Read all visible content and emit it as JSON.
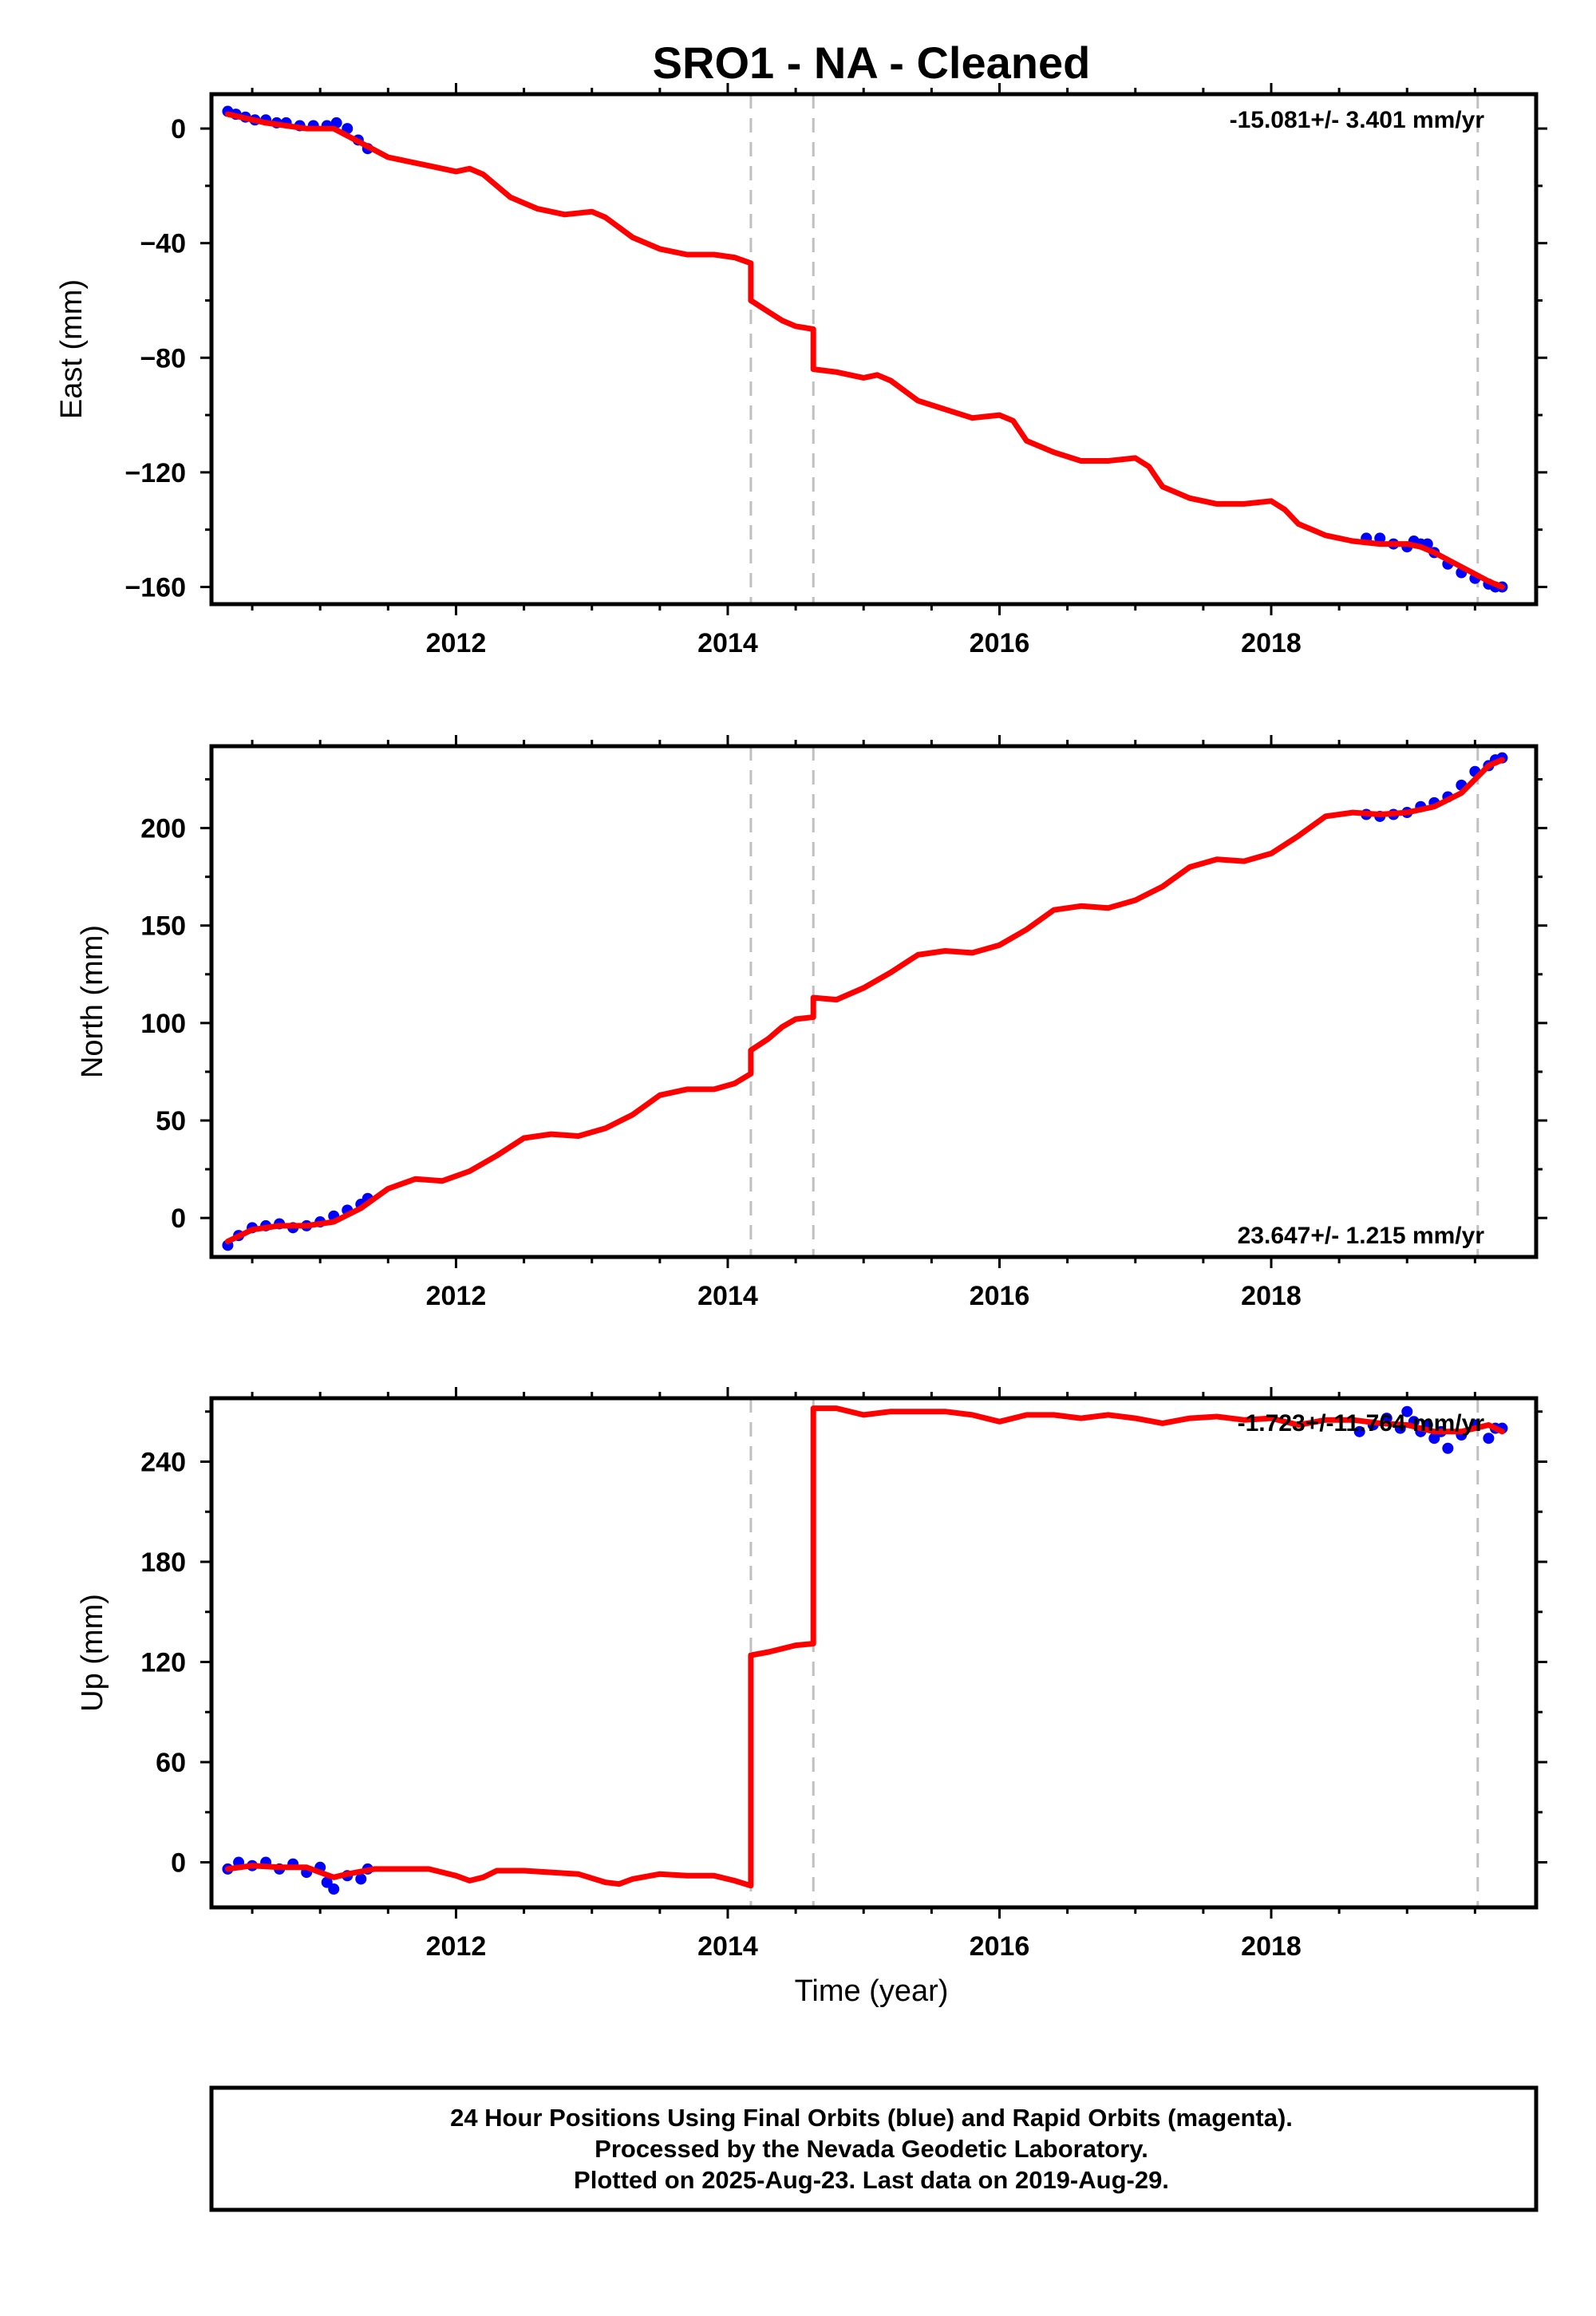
{
  "title": "SRO1  - NA - Cleaned",
  "xlabel": "Time (year)",
  "footer": {
    "line1": "24 Hour Positions Using Final Orbits (blue) and Rapid Orbits (magenta).",
    "line2": "Processed by the Nevada Geodetic Laboratory.",
    "line3": "Plotted on 2025-Aug-23. Last data on 2019-Aug-29."
  },
  "colors": {
    "data_points": "#0000ff",
    "model": "#ff0000",
    "steps": "#c0c0c0",
    "frame": "#000000"
  },
  "chart_data": [
    {
      "type": "scatter",
      "panel": "east",
      "ylabel": "East (mm)",
      "rate_label": "-15.081+/- 3.401 mm/yr",
      "xlim": [
        2010.2,
        2019.95
      ],
      "ylim": [
        -166,
        12
      ],
      "x_ticks": [
        2012,
        2014,
        2016,
        2018
      ],
      "y_ticks": [
        0,
        -40,
        -80,
        -120,
        -160
      ],
      "grid": false,
      "step_lines": [
        2014.17,
        2014.63,
        2019.52
      ],
      "series": [
        {
          "kind": "points",
          "x": [
            2010.32,
            2010.38,
            2010.45,
            2010.52,
            2010.6,
            2010.68,
            2010.75,
            2010.85,
            2010.95,
            2011.05,
            2011.12,
            2011.2,
            2011.28,
            2011.35,
            2018.7,
            2018.8,
            2018.9,
            2019.0,
            2019.05,
            2019.1,
            2019.15,
            2019.2,
            2019.3,
            2019.4,
            2019.5,
            2019.6,
            2019.65,
            2019.7
          ],
          "y": [
            6,
            5,
            4,
            3,
            3,
            2,
            2,
            1,
            1,
            1,
            2,
            0,
            -4,
            -7,
            -143,
            -143,
            -145,
            -146,
            -144,
            -145,
            -145,
            -148,
            -152,
            -155,
            -157,
            -159,
            -160,
            -160
          ]
        },
        {
          "kind": "model",
          "x": [
            2010.32,
            2010.6,
            2010.9,
            2011.1,
            2011.3,
            2011.5,
            2011.8,
            2012.0,
            2012.1,
            2012.2,
            2012.4,
            2012.6,
            2012.8,
            2013.0,
            2013.1,
            2013.3,
            2013.5,
            2013.7,
            2013.9,
            2014.05,
            2014.17,
            2014.17,
            2014.3,
            2014.4,
            2014.5,
            2014.63,
            2014.63,
            2014.8,
            2015.0,
            2015.1,
            2015.2,
            2015.4,
            2015.6,
            2015.8,
            2016.0,
            2016.1,
            2016.2,
            2016.4,
            2016.6,
            2016.8,
            2017.0,
            2017.1,
            2017.2,
            2017.4,
            2017.6,
            2017.8,
            2018.0,
            2018.1,
            2018.2,
            2018.4,
            2018.6,
            2018.8,
            2019.0,
            2019.1,
            2019.2,
            2019.4,
            2019.6,
            2019.7
          ],
          "y": [
            5,
            2,
            0,
            0,
            -5,
            -10,
            -13,
            -15,
            -14,
            -16,
            -24,
            -28,
            -30,
            -29,
            -31,
            -38,
            -42,
            -44,
            -44,
            -45,
            -47,
            -60,
            -64,
            -67,
            -69,
            -70,
            -84,
            -85,
            -87,
            -86,
            -88,
            -95,
            -98,
            -101,
            -100,
            -102,
            -109,
            -113,
            -116,
            -116,
            -115,
            -118,
            -125,
            -129,
            -131,
            -131,
            -130,
            -133,
            -138,
            -142,
            -144,
            -145,
            -145,
            -146,
            -148,
            -153,
            -158,
            -160
          ]
        }
      ]
    },
    {
      "type": "scatter",
      "panel": "north",
      "ylabel": "North (mm)",
      "rate_label": "23.647+/- 1.215 mm/yr",
      "xlim": [
        2010.2,
        2019.95
      ],
      "ylim": [
        -20,
        242
      ],
      "x_ticks": [
        2012,
        2014,
        2016,
        2018
      ],
      "y_ticks": [
        0,
        50,
        100,
        150,
        200
      ],
      "grid": false,
      "step_lines": [
        2014.17,
        2014.63,
        2019.52
      ],
      "series": [
        {
          "kind": "points",
          "x": [
            2010.32,
            2010.4,
            2010.5,
            2010.6,
            2010.7,
            2010.8,
            2010.9,
            2011.0,
            2011.1,
            2011.2,
            2011.3,
            2011.35,
            2018.7,
            2018.8,
            2018.9,
            2019.0,
            2019.1,
            2019.2,
            2019.3,
            2019.4,
            2019.5,
            2019.6,
            2019.65,
            2019.7
          ],
          "y": [
            -14,
            -9,
            -5,
            -4,
            -3,
            -5,
            -4,
            -2,
            1,
            4,
            7,
            10,
            207,
            206,
            207,
            208,
            211,
            213,
            216,
            222,
            229,
            232,
            235,
            236
          ]
        },
        {
          "kind": "model",
          "x": [
            2010.32,
            2010.5,
            2010.7,
            2010.9,
            2011.1,
            2011.3,
            2011.5,
            2011.7,
            2011.9,
            2012.1,
            2012.3,
            2012.5,
            2012.7,
            2012.9,
            2013.1,
            2013.3,
            2013.5,
            2013.7,
            2013.9,
            2014.05,
            2014.17,
            2014.17,
            2014.3,
            2014.4,
            2014.5,
            2014.63,
            2014.63,
            2014.8,
            2015.0,
            2015.2,
            2015.4,
            2015.6,
            2015.8,
            2016.0,
            2016.2,
            2016.4,
            2016.6,
            2016.8,
            2017.0,
            2017.2,
            2017.4,
            2017.6,
            2017.8,
            2018.0,
            2018.2,
            2018.4,
            2018.6,
            2018.8,
            2019.0,
            2019.2,
            2019.4,
            2019.6,
            2019.7
          ],
          "y": [
            -12,
            -6,
            -4,
            -4,
            -2,
            5,
            15,
            20,
            19,
            24,
            32,
            41,
            43,
            42,
            46,
            53,
            63,
            66,
            66,
            69,
            74,
            86,
            92,
            98,
            102,
            103,
            113,
            112,
            118,
            126,
            135,
            137,
            136,
            140,
            148,
            158,
            160,
            159,
            163,
            170,
            180,
            184,
            183,
            187,
            196,
            206,
            208,
            207,
            208,
            211,
            218,
            232,
            235
          ]
        }
      ]
    },
    {
      "type": "scatter",
      "panel": "up",
      "ylabel": "Up (mm)",
      "rate_label": "-1.723+/-11.764 mm/yr",
      "xlim": [
        2010.2,
        2019.95
      ],
      "ylim": [
        -27,
        278
      ],
      "x_ticks": [
        2012,
        2014,
        2016,
        2018
      ],
      "y_ticks": [
        0,
        60,
        120,
        180,
        240
      ],
      "grid": false,
      "step_lines": [
        2014.17,
        2014.63,
        2019.52
      ],
      "series": [
        {
          "kind": "points",
          "x": [
            2010.32,
            2010.4,
            2010.5,
            2010.6,
            2010.7,
            2010.8,
            2010.9,
            2011.0,
            2011.05,
            2011.1,
            2011.2,
            2011.3,
            2011.35,
            2018.65,
            2018.75,
            2018.85,
            2018.95,
            2019.0,
            2019.05,
            2019.1,
            2019.15,
            2019.2,
            2019.25,
            2019.3,
            2019.4,
            2019.5,
            2019.6,
            2019.65,
            2019.7
          ],
          "y": [
            -4,
            0,
            -2,
            0,
            -4,
            -1,
            -6,
            -3,
            -12,
            -16,
            -8,
            -10,
            -4,
            258,
            262,
            266,
            260,
            270,
            264,
            258,
            262,
            254,
            258,
            248,
            256,
            262,
            254,
            260,
            260
          ]
        },
        {
          "kind": "model",
          "x": [
            2010.32,
            2010.5,
            2010.7,
            2010.9,
            2011.0,
            2011.1,
            2011.2,
            2011.4,
            2011.6,
            2011.8,
            2012.0,
            2012.1,
            2012.2,
            2012.3,
            2012.5,
            2012.7,
            2012.9,
            2013.1,
            2013.2,
            2013.3,
            2013.5,
            2013.7,
            2013.9,
            2014.05,
            2014.17,
            2014.17,
            2014.3,
            2014.5,
            2014.63,
            2014.63,
            2014.8,
            2015.0,
            2015.2,
            2015.4,
            2015.6,
            2015.8,
            2016.0,
            2016.2,
            2016.4,
            2016.6,
            2016.8,
            2017.0,
            2017.2,
            2017.4,
            2017.6,
            2017.8,
            2018.0,
            2018.2,
            2018.4,
            2018.6,
            2018.8,
            2019.0,
            2019.2,
            2019.4,
            2019.6,
            2019.7
          ],
          "y": [
            -4,
            -2,
            -3,
            -3,
            -6,
            -9,
            -7,
            -4,
            -4,
            -4,
            -8,
            -11,
            -9,
            -5,
            -5,
            -6,
            -7,
            -12,
            -13,
            -10,
            -7,
            -8,
            -8,
            -11,
            -14,
            124,
            126,
            130,
            131,
            272,
            272,
            268,
            270,
            270,
            270,
            268,
            264,
            268,
            268,
            266,
            268,
            266,
            263,
            266,
            267,
            265,
            266,
            262,
            265,
            265,
            263,
            262,
            258,
            258,
            262,
            258
          ]
        }
      ]
    }
  ]
}
